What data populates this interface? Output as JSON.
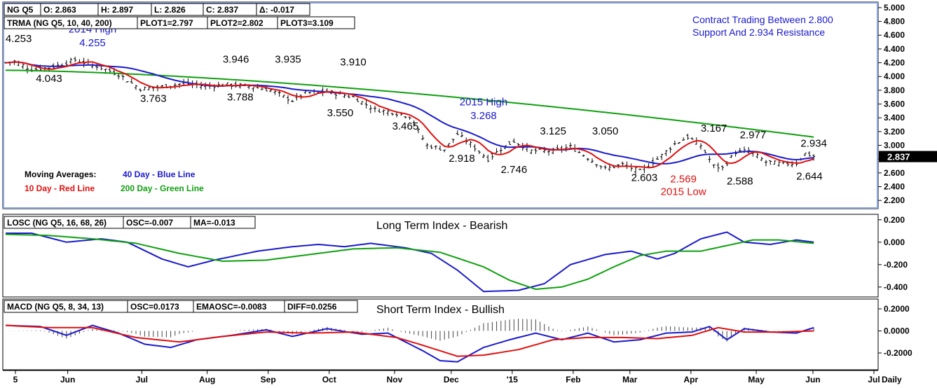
{
  "chart_data": [
    {
      "type": "ohlc",
      "info_row1": [
        "NG Q5",
        "O: 2.863",
        "H: 2.897",
        "L: 2.826",
        "C: 2.837",
        "Δ: -0.017"
      ],
      "info_row2": [
        "TRMA (NG Q5, 10, 40, 200)",
        "PLOT1=2.797",
        "PLOT2=2.802",
        "PLOT3=3.109"
      ],
      "annotation": [
        "Contract Trading Between 2.800",
        "Support And 2.934 Resistance"
      ],
      "legend": {
        "heading": "Moving Averages:",
        "items": [
          {
            "label": "40 Day - Blue Line",
            "color": "#1a1acc"
          },
          {
            "label": "10 Day - Red Line",
            "color": "#e01010"
          },
          {
            "label": "200 Day - Green Line",
            "color": "#10a010"
          }
        ]
      },
      "ylim": [
        2.1,
        5.05
      ],
      "yticks": [
        "2.200",
        "2.400",
        "2.600",
        "2.800",
        "3.000",
        "3.200",
        "3.400",
        "3.600",
        "3.800",
        "4.000",
        "4.200",
        "4.400",
        "4.600",
        "4.800",
        "5.000"
      ],
      "last_price": "2.837",
      "price_pivots": [
        [
          0,
          4.2
        ],
        [
          2,
          4.22
        ],
        [
          6,
          4.1
        ],
        [
          11,
          4.14
        ],
        [
          16,
          4.24
        ],
        [
          21,
          4.15
        ],
        [
          26,
          4.03
        ],
        [
          31,
          3.82
        ],
        [
          36,
          3.85
        ],
        [
          41,
          3.9
        ],
        [
          46,
          3.86
        ],
        [
          51,
          3.88
        ],
        [
          56,
          3.86
        ],
        [
          61,
          3.8
        ],
        [
          66,
          3.65
        ],
        [
          69,
          3.76
        ],
        [
          74,
          3.78
        ],
        [
          80,
          3.7
        ],
        [
          85,
          3.52
        ],
        [
          89,
          3.48
        ],
        [
          93,
          3.42
        ],
        [
          97,
          3.0
        ],
        [
          101,
          2.94
        ],
        [
          104,
          3.16
        ],
        [
          107,
          3.02
        ],
        [
          111,
          2.8
        ],
        [
          114,
          2.95
        ],
        [
          117,
          3.06
        ],
        [
          121,
          2.92
        ],
        [
          126,
          2.92
        ],
        [
          130,
          2.98
        ],
        [
          134,
          2.82
        ],
        [
          138,
          2.66
        ],
        [
          142,
          2.72
        ],
        [
          146,
          2.62
        ],
        [
          150,
          2.8
        ],
        [
          154,
          3.02
        ],
        [
          157,
          3.12
        ],
        [
          160,
          3.0
        ],
        [
          163,
          2.7
        ],
        [
          165,
          2.67
        ],
        [
          168,
          2.9
        ],
        [
          171,
          2.92
        ],
        [
          175,
          2.76
        ],
        [
          179,
          2.73
        ],
        [
          182,
          2.74
        ],
        [
          184,
          2.88
        ],
        [
          186,
          2.84
        ]
      ],
      "labels": [
        {
          "text": "4.253",
          "i": 3,
          "v": 4.5
        },
        {
          "text": "2014 High",
          "i": 20,
          "v": 4.64,
          "color": "#1a1acc"
        },
        {
          "text": "4.255",
          "i": 20,
          "v": 4.44,
          "color": "#1a1acc"
        },
        {
          "text": "4.043",
          "i": 10,
          "v": 3.92
        },
        {
          "text": "3.763",
          "i": 34,
          "v": 3.63
        },
        {
          "text": "3.946",
          "i": 53,
          "v": 4.2
        },
        {
          "text": "3.788",
          "i": 54,
          "v": 3.65
        },
        {
          "text": "3.935",
          "i": 65,
          "v": 4.2
        },
        {
          "text": "3.910",
          "i": 80,
          "v": 4.16
        },
        {
          "text": "3.550",
          "i": 77,
          "v": 3.42
        },
        {
          "text": "3.465",
          "i": 92,
          "v": 3.23
        },
        {
          "text": "2015 High",
          "i": 110,
          "v": 3.58,
          "color": "#1a1acc"
        },
        {
          "text": "3.268",
          "i": 110,
          "v": 3.38,
          "color": "#1a1acc"
        },
        {
          "text": "3.125",
          "i": 126,
          "v": 3.16
        },
        {
          "text": "3.050",
          "i": 138,
          "v": 3.16
        },
        {
          "text": "2.918",
          "i": 105,
          "v": 2.76
        },
        {
          "text": "2.746",
          "i": 117,
          "v": 2.6
        },
        {
          "text": "3.167",
          "i": 163,
          "v": 3.2
        },
        {
          "text": "2.977",
          "i": 172,
          "v": 3.1
        },
        {
          "text": "2.934",
          "i": 186,
          "v": 2.98
        },
        {
          "text": "2.603",
          "i": 147,
          "v": 2.48
        },
        {
          "text": "2.569",
          "i": 156,
          "v": 2.46,
          "color": "#e01010"
        },
        {
          "text": "2015 Low",
          "i": 156,
          "v": 2.28,
          "color": "#e01010"
        },
        {
          "text": "2.588",
          "i": 169,
          "v": 2.43
        },
        {
          "text": "2.644",
          "i": 185,
          "v": 2.5
        }
      ],
      "ma_colors": {
        "ma10": "#e01010",
        "ma40": "#1a1acc",
        "ma200": "#10a010"
      }
    },
    {
      "type": "line",
      "title": "Long Term Index - Bearish",
      "info": [
        "LOSC (NG Q5, 16, 68, 26)",
        "OSC=-0.007",
        "MA=-0.013"
      ],
      "ylim": [
        -0.47,
        0.23
      ],
      "yticks": [
        "0.200",
        "0.000",
        "-0.200",
        "-0.400"
      ],
      "series": [
        {
          "color": "#1a1acc",
          "x": [
            0,
            6,
            14,
            22,
            28,
            36,
            42,
            48,
            58,
            66,
            72,
            78,
            84,
            92,
            98,
            104,
            110,
            118,
            124,
            130,
            138,
            144,
            150,
            154,
            160,
            166,
            170,
            176,
            182,
            186
          ],
          "values": [
            0.08,
            0.08,
            0.0,
            0.03,
            0.0,
            -0.15,
            -0.22,
            -0.16,
            -0.08,
            -0.04,
            -0.02,
            -0.04,
            -0.01,
            -0.05,
            -0.1,
            -0.25,
            -0.44,
            -0.43,
            -0.37,
            -0.2,
            -0.11,
            -0.08,
            -0.15,
            -0.1,
            0.03,
            0.09,
            0.0,
            -0.02,
            0.02,
            0.0
          ]
        },
        {
          "color": "#10a010",
          "x": [
            0,
            10,
            20,
            30,
            40,
            50,
            60,
            70,
            80,
            90,
            100,
            110,
            116,
            122,
            128,
            134,
            140,
            146,
            152,
            160,
            166,
            172,
            178,
            186
          ],
          "values": [
            0.07,
            0.06,
            0.03,
            -0.01,
            -0.1,
            -0.17,
            -0.16,
            -0.11,
            -0.06,
            -0.05,
            -0.09,
            -0.22,
            -0.34,
            -0.42,
            -0.4,
            -0.33,
            -0.22,
            -0.12,
            -0.08,
            -0.08,
            -0.03,
            0.02,
            0.02,
            -0.01
          ]
        }
      ]
    },
    {
      "type": "line",
      "title": "Short Term Index - Bullish",
      "info": [
        "MACD (NG Q5, 8, 34, 13)",
        "OSC=0.0173",
        "EMAOSC=-0.0083",
        "DIFF=0.0256"
      ],
      "ylim": [
        -0.34,
        0.27
      ],
      "yticks": [
        "0.2000",
        "0.0000",
        "-0.2000"
      ],
      "series": [
        {
          "color": "#1a1acc",
          "x": [
            0,
            8,
            14,
            20,
            26,
            32,
            38,
            44,
            52,
            60,
            66,
            74,
            82,
            88,
            96,
            100,
            104,
            110,
            116,
            122,
            128,
            134,
            140,
            146,
            152,
            158,
            162,
            166,
            170,
            176,
            182,
            186
          ],
          "values": [
            0.05,
            0.04,
            -0.04,
            0.05,
            -0.02,
            -0.12,
            -0.15,
            -0.08,
            -0.04,
            0.01,
            -0.05,
            0.02,
            -0.03,
            -0.02,
            -0.18,
            -0.27,
            -0.28,
            -0.15,
            -0.08,
            -0.02,
            -0.08,
            -0.02,
            -0.1,
            -0.08,
            -0.02,
            -0.01,
            0.04,
            -0.08,
            0.02,
            -0.01,
            -0.02,
            0.03
          ]
        },
        {
          "color": "#e01010",
          "x": [
            0,
            10,
            20,
            30,
            40,
            50,
            60,
            70,
            80,
            90,
            96,
            104,
            110,
            118,
            126,
            134,
            142,
            150,
            158,
            164,
            170,
            178,
            186
          ],
          "values": [
            0.05,
            0.03,
            0.03,
            -0.06,
            -0.1,
            -0.05,
            -0.01,
            -0.02,
            -0.01,
            -0.06,
            -0.13,
            -0.23,
            -0.22,
            -0.17,
            -0.08,
            -0.06,
            -0.06,
            -0.07,
            -0.04,
            0.03,
            -0.01,
            -0.01,
            0.0
          ]
        }
      ]
    }
  ],
  "x_axis": {
    "labels": [
      {
        "text": "5",
        "i": 0
      },
      {
        "text": "Jun",
        "i": 12
      },
      {
        "text": "Jul",
        "i": 29
      },
      {
        "text": "Aug",
        "i": 44
      },
      {
        "text": "Sep",
        "i": 58
      },
      {
        "text": "Oct",
        "i": 72
      },
      {
        "text": "Nov",
        "i": 87
      },
      {
        "text": "Dec",
        "i": 100
      },
      {
        "text": "'15",
        "i": 114
      },
      {
        "text": "Feb",
        "i": 128
      },
      {
        "text": "Mar",
        "i": 141
      },
      {
        "text": "Apr",
        "i": 155
      },
      {
        "text": "May",
        "i": 170
      },
      {
        "text": "Jun",
        "i": 183
      },
      {
        "text": "Jul",
        "i": 197
      }
    ],
    "period": "Daily"
  }
}
